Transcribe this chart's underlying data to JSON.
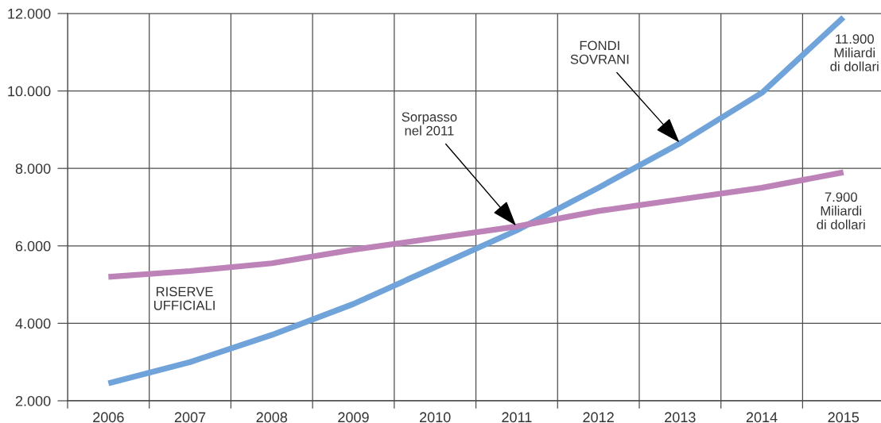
{
  "chart_data": {
    "type": "line",
    "categories": [
      "2006",
      "2007",
      "2008",
      "2009",
      "2010",
      "2011",
      "2012",
      "2013",
      "2014",
      "2015"
    ],
    "series": [
      {
        "color": "#6fa3d9",
        "values": [
          2450,
          3000,
          3700,
          4500,
          5450,
          6400,
          7500,
          8650,
          9950,
          11900
        ]
      },
      {
        "name": "RISERVE\nUFFICIALI",
        "color": "#bd83b9",
        "values": [
          5200,
          5350,
          5550,
          5900,
          6200,
          6500,
          6900,
          7200,
          7500,
          7900
        ]
      }
    ],
    "ylim": [
      2000,
      12000
    ],
    "yticks": [
      {
        "value": 2000,
        "label": "2.000"
      },
      {
        "value": 4000,
        "label": "4.000"
      },
      {
        "value": 6000,
        "label": "6.000"
      },
      {
        "value": 8000,
        "label": "8.000"
      },
      {
        "value": 10000,
        "label": "10.000"
      },
      {
        "value": 12000,
        "label": "12.000"
      }
    ],
    "grid": true,
    "annotations": [
      {
        "text": "FONDI\nSOVRANI",
        "x": "2013",
        "y": 8650
      },
      {
        "text": "Sorpasso\nnel 2011",
        "x": "2011",
        "y": 6500
      },
      {
        "text": "11.900\nMiliardi\ndi dollari",
        "x": "2015",
        "y": 11900
      },
      {
        "text": "7.900\nMiliardi\ndi dollari",
        "x": "2015",
        "y": 7900
      }
    ]
  }
}
